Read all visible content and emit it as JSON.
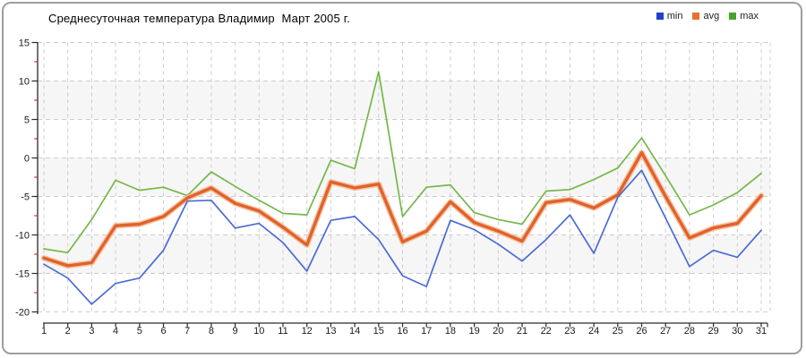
{
  "title": "Среднесуточная температура Владимир  Март 2005 г.",
  "colors": {
    "min_line": "#4a6bd5",
    "min_legend": "#2140d2",
    "avg_line": "#e0622c",
    "avg_halo": "#f6bb92",
    "avg_legend": "#e8702d",
    "max_line": "#76b74a",
    "max_legend": "#47a42a",
    "grid": "#cccccc",
    "band": "#f6f6f6",
    "axis": "#2a2a2a",
    "minor_tick": "#cc3322",
    "text": "#1a1a1a",
    "frame_border": "#9e9e9e"
  },
  "legend": {
    "items": [
      "min",
      "avg",
      "max"
    ]
  },
  "chart_data": {
    "type": "line",
    "title": "Среднесуточная температура Владимир  Март 2005 г.",
    "xlabel": "",
    "ylabel": "",
    "x": [
      1,
      2,
      3,
      4,
      5,
      6,
      7,
      8,
      9,
      10,
      11,
      12,
      13,
      14,
      15,
      16,
      17,
      18,
      19,
      20,
      21,
      22,
      23,
      24,
      25,
      26,
      27,
      28,
      29,
      30,
      31
    ],
    "ylim": [
      -20,
      15
    ],
    "yticks": [
      15,
      10,
      5,
      0,
      -5,
      -10,
      -15,
      -20
    ],
    "grid": true,
    "legend_position": "top-right",
    "series": [
      {
        "name": "min",
        "values": [
          -13.8,
          -15.6,
          -19.0,
          -16.3,
          -15.6,
          -12.0,
          -5.6,
          -5.5,
          -9.1,
          -8.5,
          -11.0,
          -14.7,
          -8.1,
          -7.6,
          -10.6,
          -15.3,
          -16.7,
          -8.1,
          -9.3,
          -11.2,
          -13.4,
          -10.6,
          -7.4,
          -12.4,
          -5.1,
          -1.6,
          -7.8,
          -14.1,
          -12.0,
          -12.9,
          -9.4
        ]
      },
      {
        "name": "avg",
        "values": [
          -13.0,
          -14.0,
          -13.6,
          -8.8,
          -8.6,
          -7.6,
          -5.2,
          -3.9,
          -5.9,
          -6.9,
          -9.0,
          -11.3,
          -3.1,
          -3.9,
          -3.4,
          -10.9,
          -9.5,
          -5.7,
          -8.4,
          -9.5,
          -10.8,
          -5.8,
          -5.4,
          -6.5,
          -4.8,
          0.7,
          -5.0,
          -10.4,
          -9.1,
          -8.5,
          -4.9
        ]
      },
      {
        "name": "max",
        "values": [
          -11.8,
          -12.3,
          -8.0,
          -2.9,
          -4.2,
          -3.8,
          -4.9,
          -1.8,
          -3.7,
          -5.5,
          -7.2,
          -7.4,
          -0.3,
          -1.4,
          11.2,
          -7.6,
          -3.8,
          -3.5,
          -7.1,
          -8.0,
          -8.6,
          -4.3,
          -4.1,
          -2.8,
          -1.3,
          2.6,
          -2.3,
          -7.4,
          -6.1,
          -4.5,
          -2.0
        ]
      }
    ]
  }
}
